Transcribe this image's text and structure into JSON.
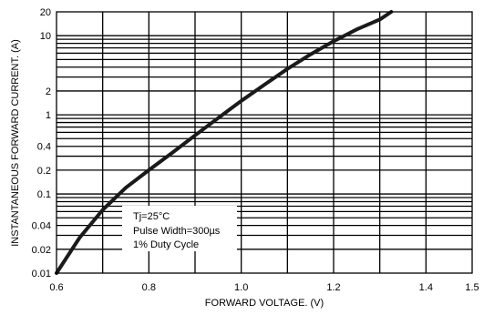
{
  "chart_data": {
    "type": "line",
    "title": "",
    "xlabel": "FORWARD VOLTAGE. (V)",
    "ylabel": "INSTANTANEOUS FORWARD CURRENT. (A)",
    "x_scale": "linear",
    "y_scale": "log",
    "xlim": [
      0.6,
      1.5
    ],
    "ylim": [
      0.01,
      20
    ],
    "grid": true,
    "x_ticks": [
      {
        "value": 0.6,
        "label": "0.6"
      },
      {
        "value": 0.8,
        "label": "0.8"
      },
      {
        "value": 1.0,
        "label": "1.0"
      },
      {
        "value": 1.2,
        "label": "1.2"
      },
      {
        "value": 1.4,
        "label": "1.4"
      },
      {
        "value": 1.5,
        "label": "1.5"
      }
    ],
    "x_gridlines": [
      0.7,
      0.8,
      0.9,
      1.0,
      1.1,
      1.2,
      1.3,
      1.4
    ],
    "y_ticks": [
      {
        "value": 0.01,
        "label": "0.01"
      },
      {
        "value": 0.02,
        "label": "0.02"
      },
      {
        "value": 0.04,
        "label": "0.04"
      },
      {
        "value": 0.1,
        "label": "0.1"
      },
      {
        "value": 0.2,
        "label": "0.2"
      },
      {
        "value": 0.4,
        "label": "0.4"
      },
      {
        "value": 1,
        "label": "1"
      },
      {
        "value": 2,
        "label": "2"
      },
      {
        "value": 10,
        "label": "10"
      },
      {
        "value": 20,
        "label": "20"
      }
    ],
    "y_gridlines": [
      0.02,
      0.03,
      0.04,
      0.05,
      0.06,
      0.07,
      0.08,
      0.09,
      0.1,
      0.2,
      0.3,
      0.4,
      0.5,
      0.6,
      0.7,
      0.8,
      0.9,
      1,
      2,
      3,
      4,
      5,
      6,
      7,
      8,
      9,
      10
    ],
    "series": [
      {
        "name": "",
        "color": "#1a1a1a",
        "x": [
          0.6,
          0.65,
          0.7,
          0.75,
          0.8,
          0.85,
          0.9,
          0.95,
          1.0,
          1.05,
          1.1,
          1.15,
          1.2,
          1.25,
          1.3,
          1.325
        ],
        "y": [
          0.01,
          0.028,
          0.063,
          0.12,
          0.2,
          0.33,
          0.55,
          0.91,
          1.5,
          2.4,
          3.8,
          5.8,
          8.5,
          12,
          16,
          20
        ]
      }
    ],
    "annotation": [
      "Tj=25°C",
      "Pulse Width=300µs",
      "1% Duty Cycle"
    ]
  }
}
